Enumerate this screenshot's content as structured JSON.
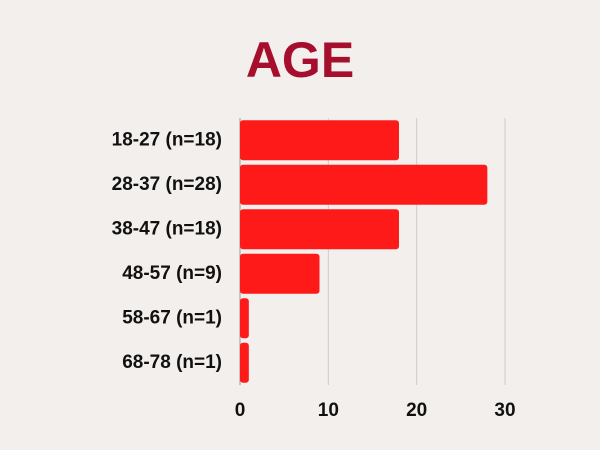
{
  "chart_data": {
    "type": "bar",
    "orientation": "horizontal",
    "title": "AGE",
    "categories": [
      "18-27 (n=18)",
      "28-37 (n=28)",
      "38-47 (n=18)",
      "48-57 (n=9)",
      "58-67 (n=1)",
      "68-78 (n=1)"
    ],
    "values": [
      18,
      28,
      18,
      9,
      1,
      1
    ],
    "color": "#ff1a1a",
    "xlim": [
      0,
      30
    ],
    "xticks": [
      0,
      10,
      20,
      30
    ],
    "grid": true
  }
}
